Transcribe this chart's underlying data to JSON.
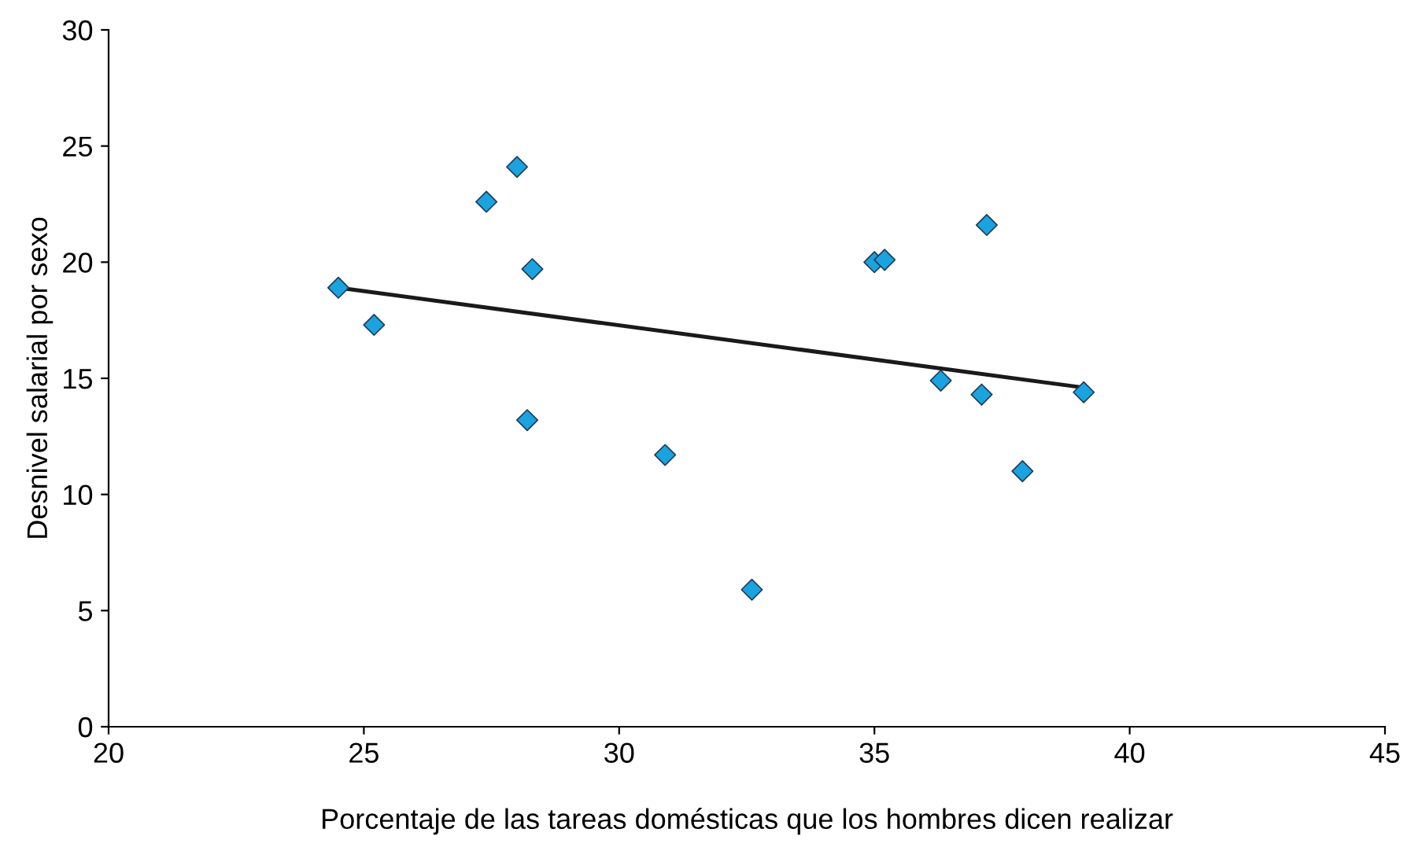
{
  "chart_data": {
    "type": "scatter",
    "xlabel": "Porcentaje de las tareas domésticas que los hombres dicen realizar",
    "ylabel": "Desnivel salarial por sexo",
    "xlim": [
      20,
      45
    ],
    "xticks": [
      20,
      25,
      30,
      35,
      40,
      45
    ],
    "ylim": [
      0,
      30
    ],
    "yticks": [
      0,
      5,
      10,
      15,
      20,
      25,
      30
    ],
    "grid": false,
    "legend": false,
    "series": [
      {
        "color": "#1aa3de",
        "marker": "diamond",
        "x": [
          24.5,
          25.2,
          27.4,
          28.0,
          28.3,
          28.2,
          30.9,
          32.6,
          35.0,
          35.2,
          37.2,
          36.3,
          37.1,
          37.9,
          39.1
        ],
        "values": [
          18.9,
          17.3,
          22.6,
          24.1,
          19.7,
          13.2,
          11.7,
          5.9,
          20.0,
          20.1,
          21.6,
          14.9,
          14.3,
          11.0,
          14.4
        ]
      },
      {
        "type": "line",
        "color": "#1a1a1a",
        "marker": "none",
        "line_style": "solid",
        "x": [
          24.5,
          39.1
        ],
        "values": [
          18.9,
          14.6
        ]
      }
    ]
  }
}
